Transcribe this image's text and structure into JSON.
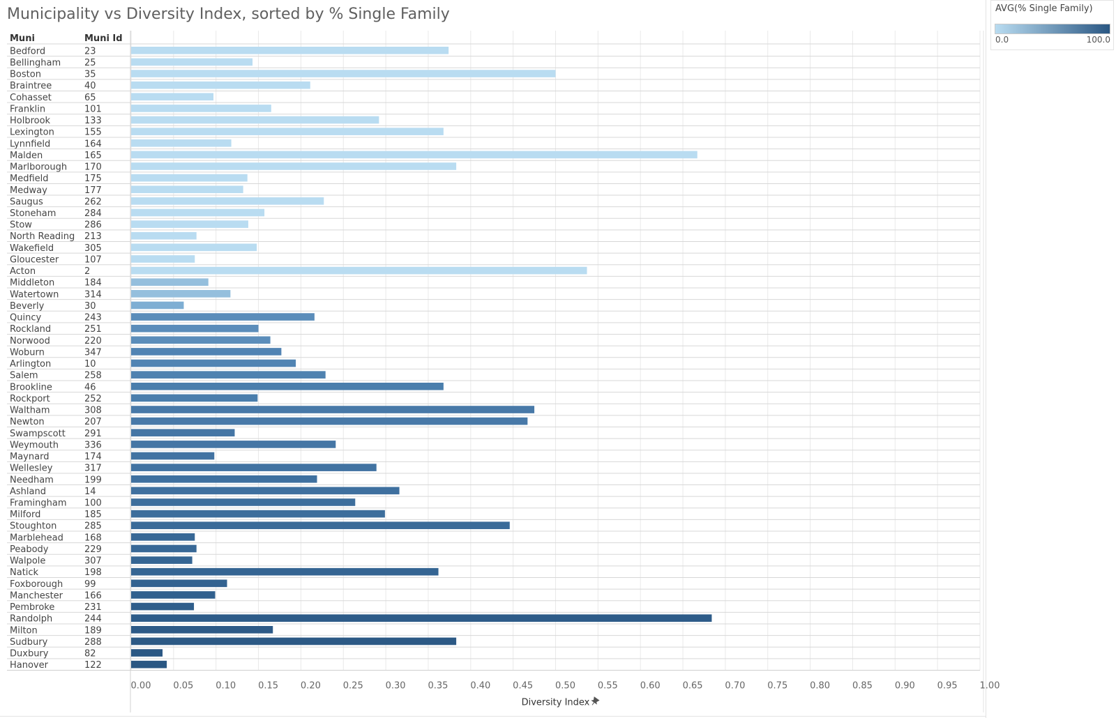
{
  "title": "Municipality vs Diversity Index, sorted by % Single Family",
  "legend": {
    "title": "AVG(% Single Family)",
    "min_label": "0.0",
    "max_label": "100.0",
    "color_low": "#b9dcf1",
    "color_high": "#2a5783"
  },
  "colors": {
    "grid": "#e9e9e9",
    "row_line": "#d7d7d7",
    "axis_text": "#666666",
    "label_text": "#444444"
  },
  "chart_data": {
    "type": "bar",
    "orientation": "horizontal",
    "row_headers": [
      "Muni",
      "Muni Id"
    ],
    "xlabel": "Diversity Index",
    "xlabel_icon": "pin-icon",
    "xlim": [
      0,
      1
    ],
    "x_ticks": [
      "0.00",
      "0.05",
      "0.10",
      "0.15",
      "0.20",
      "0.25",
      "0.30",
      "0.35",
      "0.40",
      "0.45",
      "0.50",
      "0.55",
      "0.60",
      "0.65",
      "0.70",
      "0.75",
      "0.80",
      "0.85",
      "0.90",
      "0.95",
      "1.00"
    ],
    "grid": true,
    "color_encoding": "AVG(% Single Family)",
    "rows": [
      {
        "muni": "Bedford",
        "id": "23",
        "value": 0.374,
        "color": "#b9dcf1"
      },
      {
        "muni": "Bellingham",
        "id": "25",
        "value": 0.143,
        "color": "#b9dcf1"
      },
      {
        "muni": "Boston",
        "id": "35",
        "value": 0.5,
        "color": "#b9dcf1"
      },
      {
        "muni": "Braintree",
        "id": "40",
        "value": 0.211,
        "color": "#b9dcf1"
      },
      {
        "muni": "Cohasset",
        "id": "65",
        "value": 0.097,
        "color": "#b9dcf1"
      },
      {
        "muni": "Franklin",
        "id": "101",
        "value": 0.165,
        "color": "#b9dcf1"
      },
      {
        "muni": "Holbrook",
        "id": "133",
        "value": 0.292,
        "color": "#b9dcf1"
      },
      {
        "muni": "Lexington",
        "id": "155",
        "value": 0.368,
        "color": "#b9dcf1"
      },
      {
        "muni": "Lynnfield",
        "id": "164",
        "value": 0.118,
        "color": "#b9dcf1"
      },
      {
        "muni": "Malden",
        "id": "165",
        "value": 0.667,
        "color": "#b9dcf1"
      },
      {
        "muni": "Marlborough",
        "id": "170",
        "value": 0.383,
        "color": "#b9dcf1"
      },
      {
        "muni": "Medfield",
        "id": "175",
        "value": 0.137,
        "color": "#b9dcf1"
      },
      {
        "muni": "Medway",
        "id": "177",
        "value": 0.132,
        "color": "#b9dcf1"
      },
      {
        "muni": "Saugus",
        "id": "262",
        "value": 0.227,
        "color": "#b9dcf1"
      },
      {
        "muni": "Stoneham",
        "id": "284",
        "value": 0.157,
        "color": "#b9dcf1"
      },
      {
        "muni": "Stow",
        "id": "286",
        "value": 0.138,
        "color": "#b9dcf1"
      },
      {
        "muni": "North Reading",
        "id": "213",
        "value": 0.077,
        "color": "#b9dcf1"
      },
      {
        "muni": "Wakefield",
        "id": "305",
        "value": 0.148,
        "color": "#b9dcf1"
      },
      {
        "muni": "Gloucester",
        "id": "107",
        "value": 0.075,
        "color": "#b9dcf1"
      },
      {
        "muni": "Acton",
        "id": "2",
        "value": 0.537,
        "color": "#b9dcf1"
      },
      {
        "muni": "Middleton",
        "id": "184",
        "value": 0.091,
        "color": "#95bfdd"
      },
      {
        "muni": "Watertown",
        "id": "314",
        "value": 0.117,
        "color": "#95bfdd"
      },
      {
        "muni": "Beverly",
        "id": "30",
        "value": 0.062,
        "color": "#7eaed3"
      },
      {
        "muni": "Quincy",
        "id": "243",
        "value": 0.216,
        "color": "#5b8dba"
      },
      {
        "muni": "Rockland",
        "id": "251",
        "value": 0.15,
        "color": "#5b8dba"
      },
      {
        "muni": "Norwood",
        "id": "220",
        "value": 0.164,
        "color": "#5b8dba"
      },
      {
        "muni": "Woburn",
        "id": "347",
        "value": 0.177,
        "color": "#5184b3"
      },
      {
        "muni": "Arlington",
        "id": "10",
        "value": 0.194,
        "color": "#5184b3"
      },
      {
        "muni": "Salem",
        "id": "258",
        "value": 0.229,
        "color": "#4f82b0"
      },
      {
        "muni": "Brookline",
        "id": "46",
        "value": 0.368,
        "color": "#4a7eac"
      },
      {
        "muni": "Rockport",
        "id": "252",
        "value": 0.149,
        "color": "#4a7eac"
      },
      {
        "muni": "Waltham",
        "id": "308",
        "value": 0.475,
        "color": "#4879a8"
      },
      {
        "muni": "Newton",
        "id": "207",
        "value": 0.467,
        "color": "#4879a8"
      },
      {
        "muni": "Swampscott",
        "id": "291",
        "value": 0.122,
        "color": "#4576a5"
      },
      {
        "muni": "Weymouth",
        "id": "336",
        "value": 0.241,
        "color": "#4576a5"
      },
      {
        "muni": "Maynard",
        "id": "174",
        "value": 0.098,
        "color": "#4273a2"
      },
      {
        "muni": "Wellesley",
        "id": "317",
        "value": 0.289,
        "color": "#4273a2"
      },
      {
        "muni": "Needham",
        "id": "199",
        "value": 0.219,
        "color": "#3f709f"
      },
      {
        "muni": "Ashland",
        "id": "14",
        "value": 0.316,
        "color": "#3f709f"
      },
      {
        "muni": "Framingham",
        "id": "100",
        "value": 0.264,
        "color": "#3d6e9c"
      },
      {
        "muni": "Milford",
        "id": "185",
        "value": 0.299,
        "color": "#3d6e9c"
      },
      {
        "muni": "Stoughton",
        "id": "285",
        "value": 0.446,
        "color": "#3a6b99"
      },
      {
        "muni": "Marblehead",
        "id": "168",
        "value": 0.075,
        "color": "#386896"
      },
      {
        "muni": "Peabody",
        "id": "229",
        "value": 0.077,
        "color": "#386896"
      },
      {
        "muni": "Walpole",
        "id": "307",
        "value": 0.072,
        "color": "#356593"
      },
      {
        "muni": "Natick",
        "id": "198",
        "value": 0.362,
        "color": "#356593"
      },
      {
        "muni": "Foxborough",
        "id": "99",
        "value": 0.113,
        "color": "#336290"
      },
      {
        "muni": "Manchester",
        "id": "166",
        "value": 0.099,
        "color": "#31608e"
      },
      {
        "muni": "Pembroke",
        "id": "231",
        "value": 0.074,
        "color": "#2f5e8b"
      },
      {
        "muni": "Randolph",
        "id": "244",
        "value": 0.684,
        "color": "#2e5c89"
      },
      {
        "muni": "Milton",
        "id": "189",
        "value": 0.167,
        "color": "#2d5a87"
      },
      {
        "muni": "Sudbury",
        "id": "288",
        "value": 0.383,
        "color": "#2c5985"
      },
      {
        "muni": "Duxbury",
        "id": "82",
        "value": 0.037,
        "color": "#2b5884"
      },
      {
        "muni": "Hanover",
        "id": "122",
        "value": 0.042,
        "color": "#2a5783"
      }
    ]
  }
}
